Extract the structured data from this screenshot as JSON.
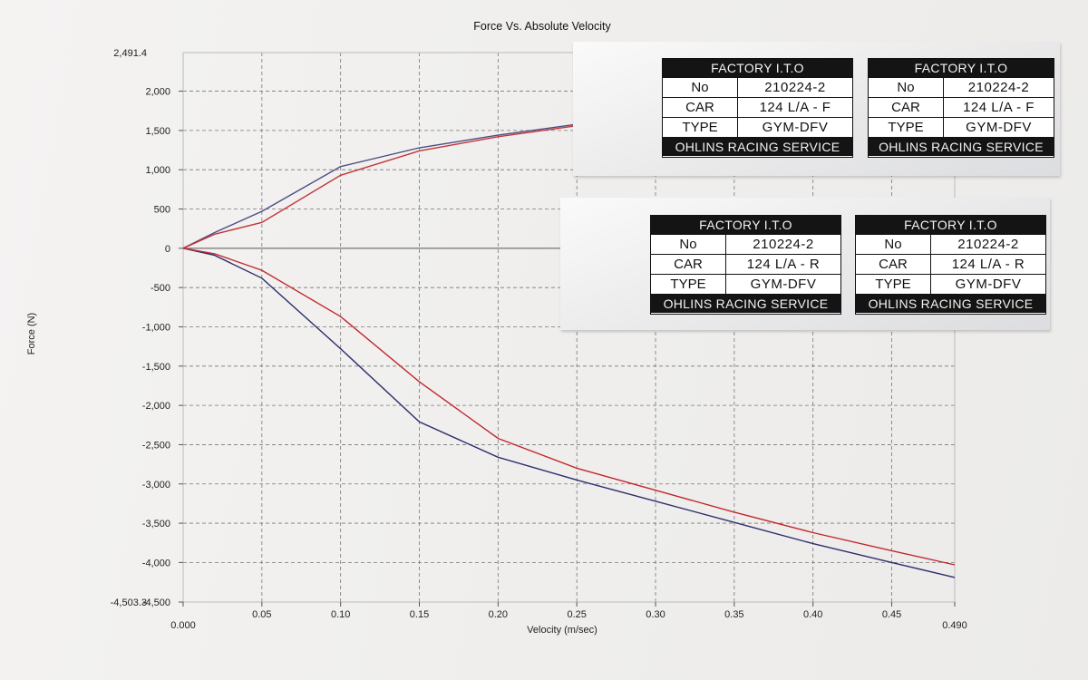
{
  "chart_data": {
    "type": "line",
    "title": "Force Vs. Absolute Velocity",
    "xlabel": "Velocity (m/sec)",
    "ylabel": "Force (N)",
    "xlim": [
      0.0,
      0.49
    ],
    "ylim": [
      -4503.3,
      2491.4
    ],
    "x_ticks": [
      0.0,
      0.05,
      0.1,
      0.15,
      0.2,
      0.25,
      0.3,
      0.35,
      0.4,
      0.45,
      0.49
    ],
    "x_tick_labels": [
      "0.000",
      "0.05",
      "0.10",
      "0.15",
      "0.20",
      "0.25",
      "0.30",
      "0.35",
      "0.40",
      "0.45",
      "0.490"
    ],
    "y_ticks": [
      2000,
      1500,
      1000,
      500,
      0,
      -500,
      -1000,
      -1500,
      -2000,
      -2500,
      -3000,
      -3500,
      -4000
    ],
    "y_tick_labels": [
      "2,000",
      "1,500",
      "1,000",
      "500",
      "0",
      "-500",
      "-1,000",
      "-1,500",
      "-2,000",
      "-2,500",
      "-3,000",
      "-3,500",
      "-4,000"
    ],
    "y_bound_labels": {
      "top": "2,491.4",
      "bottom": "-4,503.3",
      "bottom_tick": "-4,500"
    },
    "grid": true,
    "series": [
      {
        "color": "#4a4c84",
        "x": [
          0.0,
          0.02,
          0.05,
          0.1,
          0.15,
          0.2,
          0.25
        ],
        "y": [
          0,
          200,
          470,
          1040,
          1280,
          1440,
          1580
        ]
      },
      {
        "color": "#c2353a",
        "x": [
          0.0,
          0.02,
          0.05,
          0.1,
          0.15,
          0.2,
          0.25
        ],
        "y": [
          0,
          180,
          330,
          930,
          1240,
          1420,
          1560
        ]
      },
      {
        "color": "#2e2f6e",
        "x": [
          0.0,
          0.02,
          0.05,
          0.1,
          0.15,
          0.2,
          0.25,
          0.3,
          0.35,
          0.4,
          0.45,
          0.49
        ],
        "y": [
          0,
          -90,
          -380,
          -1280,
          -2210,
          -2660,
          -2950,
          -3220,
          -3490,
          -3760,
          -4000,
          -4190
        ]
      },
      {
        "color": "#c2282e",
        "x": [
          0.0,
          0.02,
          0.05,
          0.1,
          0.15,
          0.2,
          0.25,
          0.3,
          0.35,
          0.4,
          0.45,
          0.49
        ],
        "y": [
          0,
          -70,
          -280,
          -870,
          -1700,
          -2420,
          -2800,
          -3080,
          -3360,
          -3620,
          -3850,
          -4030
        ]
      }
    ]
  },
  "labels": [
    {
      "header": "FACTORY I.T.O",
      "no_key": "No",
      "no": "210224-2",
      "car_key": "CAR",
      "car": "124  L/A - F",
      "type_key": "TYPE",
      "type": "GYM-DFV",
      "footer": "OHLINS RACING SERVICE"
    },
    {
      "header": "FACTORY I.T.O",
      "no_key": "No",
      "no": "210224-2",
      "car_key": "CAR",
      "car": "124  L/A - F",
      "type_key": "TYPE",
      "type": "GYM-DFV",
      "footer": "OHLINS RACING SERVICE"
    },
    {
      "header": "FACTORY I.T.O",
      "no_key": "No",
      "no": "210224-2",
      "car_key": "CAR",
      "car": "124  L/A - R",
      "type_key": "TYPE",
      "type": "GYM-DFV",
      "footer": "OHLINS RACING SERVICE"
    },
    {
      "header": "FACTORY I.T.O",
      "no_key": "No",
      "no": "210224-2",
      "car_key": "CAR",
      "car": "124  L/A - R",
      "type_key": "TYPE",
      "type": "GYM-DFV",
      "footer": "OHLINS RACING SERVICE"
    }
  ]
}
